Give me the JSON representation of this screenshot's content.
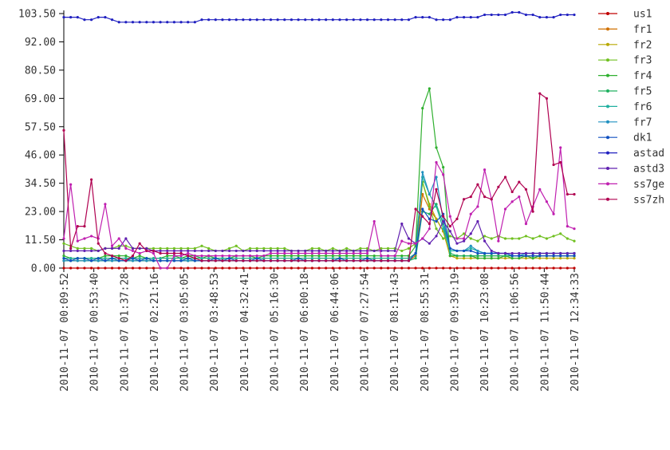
{
  "chart_data": {
    "type": "line",
    "title": "",
    "xlabel": "",
    "ylabel": "",
    "ylim": [
      0,
      103.5
    ],
    "y_ticks": [
      "103.50",
      "92.00",
      "80.50",
      "69.00",
      "57.50",
      "46.00",
      "34.50",
      "23.00",
      "11.50",
      "0.00"
    ],
    "x_ticks": [
      "2010-11-07 00:09:52",
      "2010-11-07 00:53:40",
      "2010-11-07 01:37:28",
      "2010-11-07 02:21:16",
      "2010-11-07 03:05:05",
      "2010-11-07 03:48:53",
      "2010-11-07 04:32:41",
      "2010-11-07 05:16:30",
      "2010-11-07 06:00:18",
      "2010-11-07 06:44:06",
      "2010-11-07 07:27:54",
      "2010-11-07 08:11:43",
      "2010-11-07 08:55:31",
      "2010-11-07 09:39:19",
      "2010-11-07 10:23:08",
      "2010-11-07 11:06:56",
      "2010-11-07 11:50:44",
      "2010-11-07 12:34:33"
    ],
    "grid": false,
    "legend_position": "right",
    "series": [
      {
        "name": "us1",
        "color": "#c00000",
        "values": [
          0,
          0,
          0,
          0,
          0,
          0,
          0,
          0,
          0,
          0,
          0,
          0,
          0,
          0,
          0,
          0,
          0,
          0,
          0,
          0,
          0,
          0,
          0,
          0,
          0,
          0,
          0,
          0,
          0,
          0,
          0,
          0,
          0,
          0,
          0,
          0,
          0,
          0,
          0,
          0,
          0,
          0,
          0,
          0,
          0,
          0,
          0,
          0,
          0,
          0,
          0,
          0,
          0,
          0,
          0,
          0,
          0,
          0,
          0,
          0,
          0,
          0,
          0,
          0,
          0,
          0,
          0,
          0,
          0,
          0,
          0,
          0,
          0,
          0,
          0
        ]
      },
      {
        "name": "fr1",
        "color": "#d07000",
        "values": [
          3,
          3,
          3,
          3,
          3,
          3,
          3,
          3,
          3,
          3,
          3,
          3,
          3,
          3,
          3,
          3,
          3,
          3,
          3,
          3,
          3,
          3,
          3,
          3,
          3,
          3,
          3,
          3,
          3,
          3,
          3,
          3,
          3,
          3,
          3,
          3,
          3,
          3,
          3,
          3,
          3,
          3,
          3,
          3,
          3,
          3,
          3,
          3,
          3,
          3,
          3,
          5,
          30,
          24,
          20,
          15,
          5,
          5,
          5,
          5,
          5,
          5,
          5,
          5,
          5,
          5,
          5,
          5,
          5,
          5,
          5,
          5,
          5,
          5,
          5
        ]
      },
      {
        "name": "fr2",
        "color": "#b8a800",
        "values": [
          4,
          4,
          4,
          4,
          4,
          4,
          4,
          4,
          4,
          4,
          4,
          4,
          4,
          4,
          4,
          4,
          4,
          4,
          4,
          4,
          4,
          4,
          4,
          4,
          4,
          4,
          4,
          4,
          4,
          4,
          4,
          4,
          4,
          4,
          4,
          4,
          4,
          4,
          4,
          4,
          4,
          4,
          4,
          4,
          4,
          4,
          4,
          4,
          4,
          4,
          4,
          6,
          35,
          26,
          20,
          15,
          5,
          4,
          4,
          4,
          4,
          4,
          4,
          4,
          4,
          4,
          4,
          4,
          4,
          4,
          4,
          4,
          4,
          4,
          4
        ]
      },
      {
        "name": "fr3",
        "color": "#70c020",
        "values": [
          10,
          9,
          8,
          8,
          8,
          7,
          8,
          8,
          9,
          9,
          8,
          8,
          8,
          8,
          8,
          8,
          8,
          8,
          8,
          8,
          9,
          8,
          7,
          7,
          8,
          9,
          7,
          8,
          8,
          8,
          8,
          8,
          8,
          7,
          7,
          7,
          8,
          8,
          7,
          8,
          7,
          8,
          7,
          8,
          8,
          7,
          8,
          8,
          8,
          7,
          8,
          10,
          35,
          25,
          16,
          12,
          13,
          12,
          14,
          12,
          11,
          13,
          12,
          13,
          12,
          12,
          12,
          13,
          12,
          13,
          12,
          13,
          14,
          12,
          11
        ]
      },
      {
        "name": "fr4",
        "color": "#30b030",
        "values": [
          5,
          4,
          4,
          4,
          4,
          4,
          5,
          5,
          5,
          5,
          4,
          5,
          4,
          4,
          4,
          5,
          5,
          4,
          5,
          5,
          4,
          5,
          4,
          4,
          4,
          5,
          5,
          5,
          4,
          5,
          5,
          5,
          5,
          5,
          5,
          5,
          5,
          5,
          5,
          5,
          5,
          5,
          5,
          5,
          5,
          5,
          5,
          5,
          5,
          5,
          5,
          9,
          65,
          73,
          49,
          41,
          5,
          5,
          5,
          5,
          4,
          4,
          4,
          4,
          5,
          4,
          4,
          5,
          4,
          5,
          5,
          5,
          5,
          5,
          5
        ]
      },
      {
        "name": "fr5",
        "color": "#20b060",
        "values": [
          3,
          3,
          3,
          3,
          3,
          3,
          3,
          3,
          3,
          3,
          3,
          3,
          3,
          3,
          3,
          3,
          3,
          3,
          3,
          3,
          3,
          3,
          3,
          3,
          3,
          3,
          3,
          3,
          3,
          3,
          3,
          3,
          3,
          3,
          3,
          3,
          3,
          3,
          3,
          3,
          3,
          3,
          3,
          3,
          3,
          3,
          3,
          3,
          3,
          3,
          3,
          4,
          23,
          22,
          26,
          18,
          6,
          5,
          5,
          5,
          5,
          5,
          5,
          5,
          5,
          5,
          5,
          5,
          5,
          5,
          5,
          5,
          5,
          5,
          5
        ]
      },
      {
        "name": "fr6",
        "color": "#20b0a0",
        "values": [
          4,
          4,
          4,
          4,
          4,
          4,
          4,
          4,
          4,
          4,
          4,
          4,
          4,
          4,
          4,
          4,
          4,
          4,
          4,
          4,
          4,
          4,
          4,
          4,
          4,
          4,
          4,
          4,
          4,
          4,
          4,
          4,
          4,
          4,
          4,
          4,
          4,
          4,
          4,
          4,
          4,
          4,
          4,
          4,
          4,
          4,
          4,
          4,
          4,
          4,
          4,
          6,
          37,
          30,
          25,
          16,
          7,
          7,
          7,
          8,
          7,
          6,
          6,
          6,
          6,
          5,
          5,
          6,
          6,
          6,
          6,
          6,
          6,
          6,
          6
        ]
      },
      {
        "name": "fr7",
        "color": "#2090c0",
        "values": [
          3,
          3,
          3,
          3,
          3,
          3,
          3,
          3,
          3,
          3,
          3,
          3,
          3,
          3,
          3,
          3,
          3,
          3,
          3,
          3,
          3,
          3,
          3,
          3,
          3,
          3,
          3,
          3,
          3,
          3,
          3,
          3,
          3,
          3,
          3,
          3,
          3,
          3,
          3,
          3,
          3,
          3,
          3,
          3,
          3,
          3,
          3,
          3,
          3,
          3,
          3,
          6,
          39,
          30,
          37,
          19,
          8,
          7,
          7,
          9,
          7,
          6,
          6,
          6,
          6,
          5,
          5,
          6,
          6,
          6,
          6,
          6,
          6,
          6,
          6
        ]
      },
      {
        "name": "dk1",
        "color": "#1050c0",
        "values": [
          4,
          3,
          4,
          4,
          3,
          4,
          3,
          4,
          3,
          3,
          4,
          3,
          4,
          3,
          3,
          3,
          3,
          3,
          4,
          3,
          3,
          3,
          4,
          3,
          4,
          3,
          3,
          3,
          4,
          3,
          3,
          3,
          3,
          3,
          4,
          3,
          3,
          3,
          3,
          3,
          4,
          3,
          3,
          3,
          4,
          3,
          3,
          3,
          3,
          3,
          3,
          6,
          24,
          20,
          19,
          22,
          8,
          7,
          7,
          7,
          6,
          6,
          6,
          6,
          6,
          5,
          5,
          5,
          5,
          5,
          5,
          5,
          5,
          5,
          5
        ]
      },
      {
        "name": "astad",
        "color": "#2020c0",
        "values": [
          102,
          102,
          102,
          101,
          101,
          102,
          102,
          101,
          100,
          100,
          100,
          100,
          100,
          100,
          100,
          100,
          100,
          100,
          100,
          100,
          101,
          101,
          101,
          101,
          101,
          101,
          101,
          101,
          101,
          101,
          101,
          101,
          101,
          101,
          101,
          101,
          101,
          101,
          101,
          101,
          101,
          101,
          101,
          101,
          101,
          101,
          101,
          101,
          101,
          101,
          101,
          102,
          102,
          102,
          101,
          101,
          101,
          102,
          102,
          102,
          102,
          103,
          103,
          103,
          103,
          104,
          104,
          103,
          103,
          102,
          102,
          102,
          103,
          103,
          103
        ]
      },
      {
        "name": "astd3",
        "color": "#6020b0",
        "values": [
          7,
          7,
          7,
          7,
          7,
          7,
          8,
          8,
          8,
          12,
          8,
          8,
          8,
          7,
          7,
          7,
          7,
          7,
          7,
          7,
          7,
          7,
          7,
          7,
          7,
          7,
          7,
          7,
          7,
          7,
          7,
          7,
          7,
          7,
          7,
          7,
          7,
          7,
          7,
          7,
          7,
          7,
          7,
          7,
          7,
          7,
          7,
          7,
          7,
          18,
          12,
          10,
          12,
          10,
          13,
          19,
          15,
          10,
          11,
          14,
          19,
          11,
          7,
          6,
          6,
          6,
          6,
          6,
          6,
          6,
          6,
          6,
          6,
          6,
          6
        ]
      },
      {
        "name": "ss7ge",
        "color": "#c020b0",
        "values": [
          12,
          34,
          11,
          12,
          13,
          12,
          26,
          9,
          12,
          8,
          7,
          6,
          7,
          6,
          0,
          0,
          5,
          5,
          6,
          5,
          5,
          5,
          5,
          5,
          5,
          5,
          5,
          5,
          5,
          5,
          6,
          6,
          6,
          6,
          6,
          6,
          6,
          6,
          6,
          6,
          6,
          6,
          6,
          6,
          6,
          19,
          5,
          5,
          5,
          11,
          10,
          10,
          12,
          16,
          43,
          38,
          21,
          12,
          12,
          22,
          25,
          40,
          28,
          11,
          24,
          27,
          29,
          18,
          25,
          32,
          27,
          22,
          49,
          17,
          16
        ]
      },
      {
        "name": "ss7zh",
        "color": "#b00050",
        "values": [
          56,
          8,
          17,
          17,
          36,
          10,
          6,
          5,
          4,
          3,
          5,
          10,
          7,
          7,
          6,
          6,
          6,
          6,
          5,
          4,
          3,
          3,
          3,
          3,
          3,
          3,
          3,
          3,
          3,
          3,
          3,
          3,
          3,
          3,
          3,
          3,
          3,
          3,
          3,
          3,
          3,
          3,
          3,
          3,
          3,
          3,
          3,
          3,
          3,
          3,
          3,
          24,
          21,
          18,
          32,
          21,
          17,
          20,
          28,
          29,
          34,
          29,
          28,
          33,
          37,
          31,
          35,
          32,
          23,
          71,
          69,
          42,
          43,
          30,
          30
        ]
      }
    ]
  }
}
